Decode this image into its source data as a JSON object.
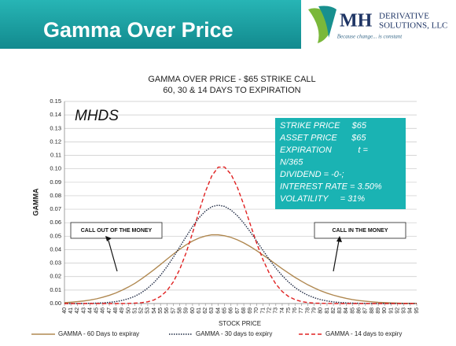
{
  "header": {
    "title": "Gamma Over Price",
    "logo_mark": "MH",
    "logo_line1": "DERIVATIVE",
    "logo_line2": "SOLUTIONS, LLC",
    "tagline": "Because change... is constant"
  },
  "chart_data": {
    "type": "line",
    "title": [
      "GAMMA OVER PRICE - $65 STRIKE CALL",
      "60, 30 & 14 DAYS TO EXPIRATION"
    ],
    "watermark": "MHDS",
    "info_box": [
      "STRIKE PRICE     $65",
      "ASSET PRICE      $65",
      "EXPIRATION           t =",
      "N/365",
      "DIVIDEND = -0-;",
      "INTEREST RATE = 3.50%",
      "VOLATILITY     = 31%"
    ],
    "annotations": [
      "CALL OUT OF THE MONEY",
      "CALL IN THE MONEY"
    ],
    "x_label": "STOCK PRICE",
    "y_label": "GAMMA",
    "categories": [
      40,
      41,
      42,
      43,
      44,
      45,
      46,
      47,
      48,
      49,
      50,
      51,
      52,
      53,
      54,
      55,
      56,
      57,
      58,
      59,
      60,
      61,
      62,
      63,
      64,
      65,
      66,
      67,
      68,
      69,
      70,
      71,
      72,
      73,
      74,
      75,
      76,
      77,
      78,
      79,
      80,
      81,
      82,
      83,
      84,
      85,
      86,
      87,
      88,
      89,
      90,
      91,
      92,
      93,
      94,
      95
    ],
    "series": [
      {
        "name": "GAMMA - 60 Days to expiray",
        "color": "#b08850",
        "dash": "none",
        "values": [
          0.0007,
          0.001,
          0.0014,
          0.0019,
          0.0026,
          0.0035,
          0.0047,
          0.0061,
          0.0078,
          0.0099,
          0.0123,
          0.015,
          0.0182,
          0.0216,
          0.0252,
          0.029,
          0.0329,
          0.0367,
          0.0403,
          0.0436,
          0.0464,
          0.0486,
          0.0501,
          0.051,
          0.051,
          0.0503,
          0.0491,
          0.0473,
          0.045,
          0.0423,
          0.0393,
          0.036,
          0.0327,
          0.0292,
          0.0258,
          0.0226,
          0.0194,
          0.0166,
          0.0139,
          0.0116,
          0.0095,
          0.0077,
          0.0062,
          0.0049,
          0.0038,
          0.0029,
          0.0022,
          0.0017,
          0.0013,
          0.0009,
          0.0007,
          0.0005,
          0.0003,
          0.0002,
          0.0002,
          0.0001
        ]
      },
      {
        "name": "GAMMA - 30 days to expiry",
        "color": "#1f2a44",
        "dash": "1.5 1.5",
        "values": [
          0,
          0,
          0,
          0.0001,
          0.0002,
          0.0003,
          0.0005,
          0.0009,
          0.0014,
          0.0023,
          0.0036,
          0.0054,
          0.008,
          0.0114,
          0.0157,
          0.021,
          0.0273,
          0.0344,
          0.042,
          0.0497,
          0.0571,
          0.0636,
          0.0686,
          0.0719,
          0.073,
          0.0721,
          0.0694,
          0.0652,
          0.0597,
          0.0533,
          0.0464,
          0.0394,
          0.0326,
          0.0263,
          0.0207,
          0.0159,
          0.0119,
          0.0087,
          0.0062,
          0.0043,
          0.0029,
          0.0019,
          0.0012,
          0.0008,
          0.0005,
          0.0003,
          0.0002,
          0.0001,
          0,
          0,
          0,
          0,
          0,
          0,
          0,
          0
        ]
      },
      {
        "name": "GAMMA - 14 days to expiry",
        "color": "#e02020",
        "dash": "5 3",
        "values": [
          0,
          0,
          0,
          0,
          0,
          0,
          0,
          0,
          0,
          0,
          0.0001,
          0.0003,
          0.0006,
          0.0013,
          0.0027,
          0.0053,
          0.0095,
          0.0161,
          0.0254,
          0.0377,
          0.0524,
          0.0682,
          0.083,
          0.0947,
          0.1012,
          0.1013,
          0.096,
          0.0862,
          0.0733,
          0.059,
          0.045,
          0.0325,
          0.0223,
          0.0145,
          0.0089,
          0.0052,
          0.0029,
          0.0015,
          0.0007,
          0.0003,
          0.0002,
          0.0001,
          0,
          0,
          0,
          0,
          0,
          0,
          0,
          0,
          0,
          0,
          0,
          0,
          0,
          0
        ]
      }
    ],
    "ylim": [
      0,
      0.15
    ],
    "yticks": [
      {
        "value": 0,
        "label": "0.00"
      },
      {
        "value": 0.01,
        "label": "0.01"
      },
      {
        "value": 0.02,
        "label": "0.02"
      },
      {
        "value": 0.03,
        "label": "0.03"
      },
      {
        "value": 0.04,
        "label": "0.04"
      },
      {
        "value": 0.05,
        "label": "0.05"
      },
      {
        "value": 0.06,
        "label": "0.06"
      },
      {
        "value": 0.07,
        "label": "0.07"
      },
      {
        "value": 0.08,
        "label": "0.08"
      },
      {
        "value": 0.09,
        "label": "0.09"
      },
      {
        "value": 0.1,
        "label": "0.10"
      },
      {
        "value": 0.11,
        "label": "0.11"
      },
      {
        "value": 0.12,
        "label": "0.12"
      },
      {
        "value": 0.13,
        "label": "0.13"
      },
      {
        "value": 0.14,
        "label": "0.14"
      },
      {
        "value": 0.15,
        "label": "0.15"
      }
    ],
    "grid": true
  }
}
